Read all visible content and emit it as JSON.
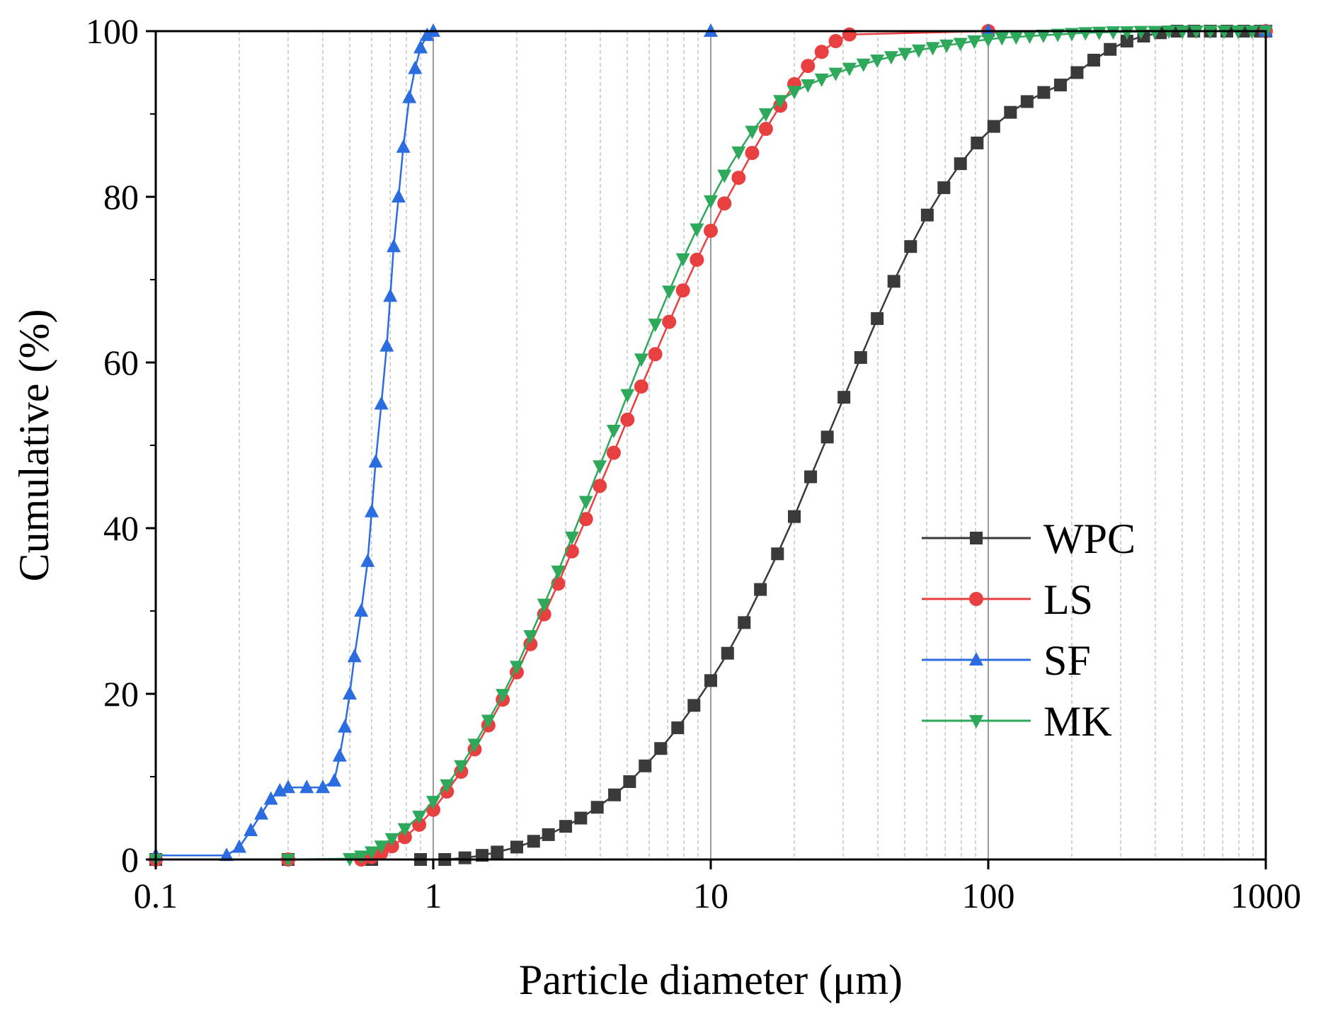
{
  "chart_data": {
    "type": "line",
    "xscale": "log",
    "xlim": [
      0.1,
      1000
    ],
    "ylim": [
      0,
      100
    ],
    "xticks": [
      0.1,
      1,
      10,
      100,
      1000
    ],
    "xtick_labels": [
      "0.1",
      "1",
      "10",
      "100",
      "1000"
    ],
    "yticks": [
      0,
      20,
      40,
      60,
      80,
      100
    ],
    "ytick_labels": [
      "0",
      "20",
      "40",
      "60",
      "80",
      "100"
    ],
    "xlabel": "Particle diameter (μm)",
    "ylabel": "Cumulative (%)",
    "grid": "vertical log gridlines (solid at decades, dashed at minor ticks)",
    "legend_position": "center-right",
    "series": [
      {
        "name": "WPC",
        "color": "#3a3a3a",
        "marker": "square",
        "x": [
          0.1,
          0.3,
          0.6,
          0.9,
          1.1,
          1.3,
          1.5,
          1.7,
          2.0,
          2.3,
          2.6,
          3.0,
          3.4,
          3.9,
          4.5,
          5.1,
          5.8,
          6.6,
          7.6,
          8.7,
          10,
          11.5,
          13.2,
          15.1,
          17.4,
          20,
          22.9,
          26.3,
          30.2,
          34.7,
          39.8,
          45.7,
          52.5,
          60.3,
          69.2,
          79.4,
          91.2,
          104.7,
          120.2,
          138,
          158.5,
          182,
          208.9,
          240,
          275,
          316,
          363,
          417,
          479,
          550,
          631,
          724,
          832,
          955,
          1000
        ],
        "y": [
          0,
          0,
          0,
          0,
          0,
          0.2,
          0.5,
          0.9,
          1.5,
          2.2,
          3,
          4,
          5,
          6.3,
          7.8,
          9.4,
          11.3,
          13.4,
          15.9,
          18.6,
          21.6,
          24.9,
          28.6,
          32.6,
          36.9,
          41.4,
          46.2,
          51,
          55.8,
          60.6,
          65.3,
          69.8,
          74,
          77.8,
          81.1,
          84,
          86.5,
          88.5,
          90.2,
          91.5,
          92.6,
          93.5,
          95,
          96.5,
          97.8,
          98.8,
          99.4,
          99.8,
          100,
          100,
          100,
          100,
          100,
          100,
          100
        ]
      },
      {
        "name": "LS",
        "color": "#e84040",
        "marker": "circle",
        "x": [
          0.1,
          0.3,
          0.55,
          0.6,
          0.65,
          0.71,
          0.79,
          0.89,
          1.0,
          1.12,
          1.26,
          1.41,
          1.58,
          1.78,
          2.0,
          2.24,
          2.51,
          2.82,
          3.16,
          3.55,
          3.98,
          4.47,
          5.01,
          5.62,
          6.31,
          7.08,
          7.94,
          8.91,
          10,
          11.2,
          12.6,
          14.1,
          15.8,
          17.8,
          20,
          22.4,
          25.1,
          28.2,
          31.6,
          100,
          1000
        ],
        "y": [
          0,
          0,
          0,
          0.3,
          0.8,
          1.6,
          2.7,
          4.2,
          6,
          8.2,
          10.6,
          13.3,
          16.2,
          19.3,
          22.6,
          26,
          29.6,
          33.3,
          37.2,
          41.1,
          45.1,
          49.1,
          53.1,
          57.1,
          61,
          64.9,
          68.7,
          72.4,
          75.9,
          79.2,
          82.3,
          85.3,
          88.2,
          91,
          93.6,
          95.8,
          97.5,
          98.8,
          99.6,
          100,
          100
        ]
      },
      {
        "name": "SF",
        "color": "#2b6de0",
        "marker": "triangle-up",
        "x": [
          0.1,
          0.18,
          0.2,
          0.22,
          0.24,
          0.26,
          0.28,
          0.3,
          0.35,
          0.4,
          0.44,
          0.46,
          0.48,
          0.5,
          0.52,
          0.55,
          0.58,
          0.6,
          0.62,
          0.65,
          0.68,
          0.7,
          0.72,
          0.75,
          0.78,
          0.82,
          0.86,
          0.9,
          0.95,
          1.0,
          10,
          100,
          1000
        ],
        "y": [
          0.5,
          0.5,
          1.5,
          3.5,
          5.5,
          7.3,
          8.3,
          8.7,
          8.7,
          8.7,
          9.5,
          12.5,
          16,
          20,
          24.5,
          30,
          36,
          42,
          48,
          55,
          62,
          68,
          74,
          80,
          86,
          92,
          95.5,
          98,
          99.5,
          100,
          100,
          100,
          100
        ]
      },
      {
        "name": "MK",
        "color": "#2ea85a",
        "marker": "triangle-down",
        "x": [
          0.1,
          0.3,
          0.5,
          0.55,
          0.6,
          0.65,
          0.71,
          0.79,
          0.89,
          1.0,
          1.12,
          1.26,
          1.41,
          1.58,
          1.78,
          2.0,
          2.24,
          2.51,
          2.82,
          3.16,
          3.55,
          3.98,
          4.47,
          5.01,
          5.62,
          6.31,
          7.08,
          7.94,
          8.91,
          10,
          11.2,
          12.6,
          14.1,
          15.8,
          17.8,
          20,
          22.4,
          25.1,
          28.2,
          31.6,
          35.5,
          39.8,
          44.7,
          50.1,
          56.2,
          63.1,
          70.8,
          79.4,
          89.1,
          100,
          112,
          126,
          141,
          158,
          178,
          200,
          224,
          251,
          282,
          316,
          355,
          398,
          447,
          501,
          562,
          631,
          708,
          794,
          891,
          1000
        ],
        "y": [
          0,
          0,
          0.1,
          0.4,
          0.9,
          1.6,
          2.5,
          3.7,
          5.2,
          7,
          9,
          11.3,
          13.9,
          16.8,
          19.9,
          23.3,
          27,
          30.8,
          34.8,
          38.9,
          43.2,
          47.5,
          51.8,
          56.1,
          60.4,
          64.6,
          68.6,
          72.5,
          76.1,
          79.5,
          82.6,
          85.4,
          87.9,
          90,
          91.6,
          92.7,
          93.5,
          94.2,
          94.9,
          95.5,
          96,
          96.5,
          96.9,
          97.3,
          97.7,
          98,
          98.3,
          98.5,
          98.8,
          99,
          99.2,
          99.3,
          99.4,
          99.5,
          99.6,
          99.7,
          99.8,
          99.85,
          99.9,
          99.9,
          99.95,
          99.95,
          100,
          100,
          100,
          100,
          100,
          100,
          100,
          100
        ]
      }
    ]
  }
}
